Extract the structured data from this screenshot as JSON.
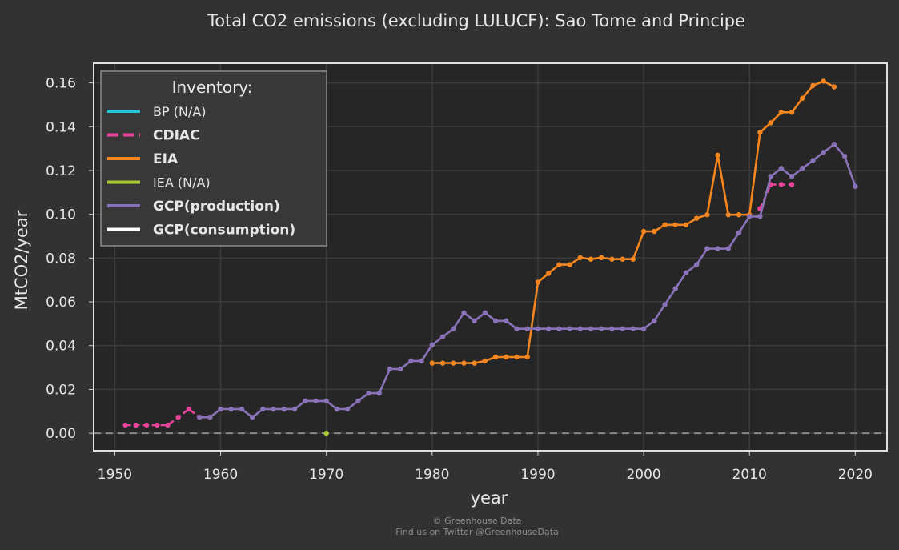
{
  "chart_data": {
    "type": "line",
    "title": "Total CO2 emissions (excluding LULUCF): Sao Tome and Principe",
    "xlabel": "year",
    "ylabel": "MtCO2/year",
    "xlim": [
      1948,
      2023
    ],
    "ylim": [
      -0.008,
      0.169
    ],
    "x_ticks": [
      1950,
      1960,
      1970,
      1980,
      1990,
      2000,
      2010,
      2020
    ],
    "y_ticks": [
      0.0,
      0.02,
      0.04,
      0.06,
      0.08,
      0.1,
      0.12,
      0.14,
      0.16
    ],
    "y_tick_labels": [
      "0.00",
      "0.02",
      "0.04",
      "0.06",
      "0.08",
      "0.10",
      "0.12",
      "0.14",
      "0.16"
    ],
    "grid": true,
    "zero_line": true,
    "legend": {
      "title": "Inventory:",
      "position": "top-left",
      "items": [
        {
          "label": "BP (N/A)",
          "color": "#22c8d4",
          "style": "solid",
          "bold": false
        },
        {
          "label": "CDIAC",
          "color": "#e8449a",
          "style": "dashed",
          "bold": true
        },
        {
          "label": "EIA",
          "color": "#f5861f",
          "style": "solid",
          "bold": true
        },
        {
          "label": "IEA (N/A)",
          "color": "#a8c832",
          "style": "solid",
          "bold": false
        },
        {
          "label": "GCP(production)",
          "color": "#8a72b8",
          "style": "solid",
          "bold": true
        },
        {
          "label": "GCP(consumption)",
          "color": "#ffffff",
          "style": "solid",
          "bold": true
        }
      ]
    },
    "series": [
      {
        "name": "CDIAC",
        "color": "#e8449a",
        "style": "dashed",
        "x": [
          1951,
          1952,
          1953,
          1954,
          1955,
          1956,
          1957,
          1958,
          1959,
          2011,
          2012,
          2013,
          2014
        ],
        "y": [
          0.0037,
          0.0037,
          0.0037,
          0.0037,
          0.0037,
          0.0073,
          0.011,
          0.0073,
          0.0073,
          0.1026,
          0.1136,
          0.1136,
          0.1136
        ]
      },
      {
        "name": "EIA",
        "color": "#f5861f",
        "style": "solid",
        "x": [
          1980,
          1981,
          1982,
          1983,
          1984,
          1985,
          1986,
          1987,
          1988,
          1989,
          1990,
          1991,
          1992,
          1993,
          1994,
          1995,
          1996,
          1997,
          1998,
          1999,
          2000,
          2001,
          2002,
          2003,
          2004,
          2005,
          2006,
          2007,
          2008,
          2009,
          2010,
          2011,
          2012,
          2013,
          2014,
          2015,
          2016,
          2017,
          2018
        ],
        "y": [
          0.032,
          0.032,
          0.032,
          0.032,
          0.032,
          0.033,
          0.0348,
          0.0348,
          0.0348,
          0.0348,
          0.069,
          0.073,
          0.077,
          0.077,
          0.0802,
          0.0795,
          0.0802,
          0.0795,
          0.0795,
          0.0795,
          0.0922,
          0.0922,
          0.0952,
          0.0952,
          0.0952,
          0.0982,
          0.0998,
          0.127,
          0.0998,
          0.0998,
          0.0998,
          0.1374,
          0.1418,
          0.1466,
          0.1466,
          0.153,
          0.1588,
          0.1608,
          0.1582
        ]
      },
      {
        "name": "GCP(production)",
        "color": "#8a72b8",
        "style": "solid",
        "x": [
          1958,
          1959,
          1960,
          1961,
          1962,
          1963,
          1964,
          1965,
          1966,
          1967,
          1968,
          1969,
          1970,
          1971,
          1972,
          1973,
          1974,
          1975,
          1976,
          1977,
          1978,
          1979,
          1980,
          1981,
          1982,
          1983,
          1984,
          1985,
          1986,
          1987,
          1988,
          1989,
          1990,
          1991,
          1992,
          1993,
          1994,
          1995,
          1996,
          1997,
          1998,
          1999,
          2000,
          2001,
          2002,
          2003,
          2004,
          2005,
          2006,
          2007,
          2008,
          2009,
          2010,
          2011,
          2012,
          2013,
          2014,
          2015,
          2016,
          2017,
          2018,
          2019,
          2020
        ],
        "y": [
          0.0073,
          0.0073,
          0.011,
          0.011,
          0.011,
          0.0073,
          0.011,
          0.011,
          0.011,
          0.011,
          0.0147,
          0.0147,
          0.0147,
          0.011,
          0.011,
          0.0147,
          0.0183,
          0.0183,
          0.0293,
          0.0293,
          0.033,
          0.033,
          0.0403,
          0.044,
          0.0477,
          0.055,
          0.0513,
          0.055,
          0.0513,
          0.0513,
          0.0477,
          0.0477,
          0.0477,
          0.0477,
          0.0477,
          0.0477,
          0.0477,
          0.0477,
          0.0477,
          0.0477,
          0.0477,
          0.0477,
          0.0477,
          0.0513,
          0.0587,
          0.066,
          0.0733,
          0.077,
          0.0843,
          0.0843,
          0.0843,
          0.0916,
          0.099,
          0.099,
          0.1173,
          0.121,
          0.1173,
          0.121,
          0.1246,
          0.1283,
          0.132,
          0.1265,
          0.1128
        ]
      },
      {
        "name": "IEA (N/A)",
        "color": "#a8c832",
        "style": "solid",
        "x": [
          1970
        ],
        "y": [
          0.0
        ]
      }
    ]
  },
  "credits": {
    "line1": "© Greenhouse Data",
    "line2": "Find us on Twitter @GreenhouseData"
  }
}
